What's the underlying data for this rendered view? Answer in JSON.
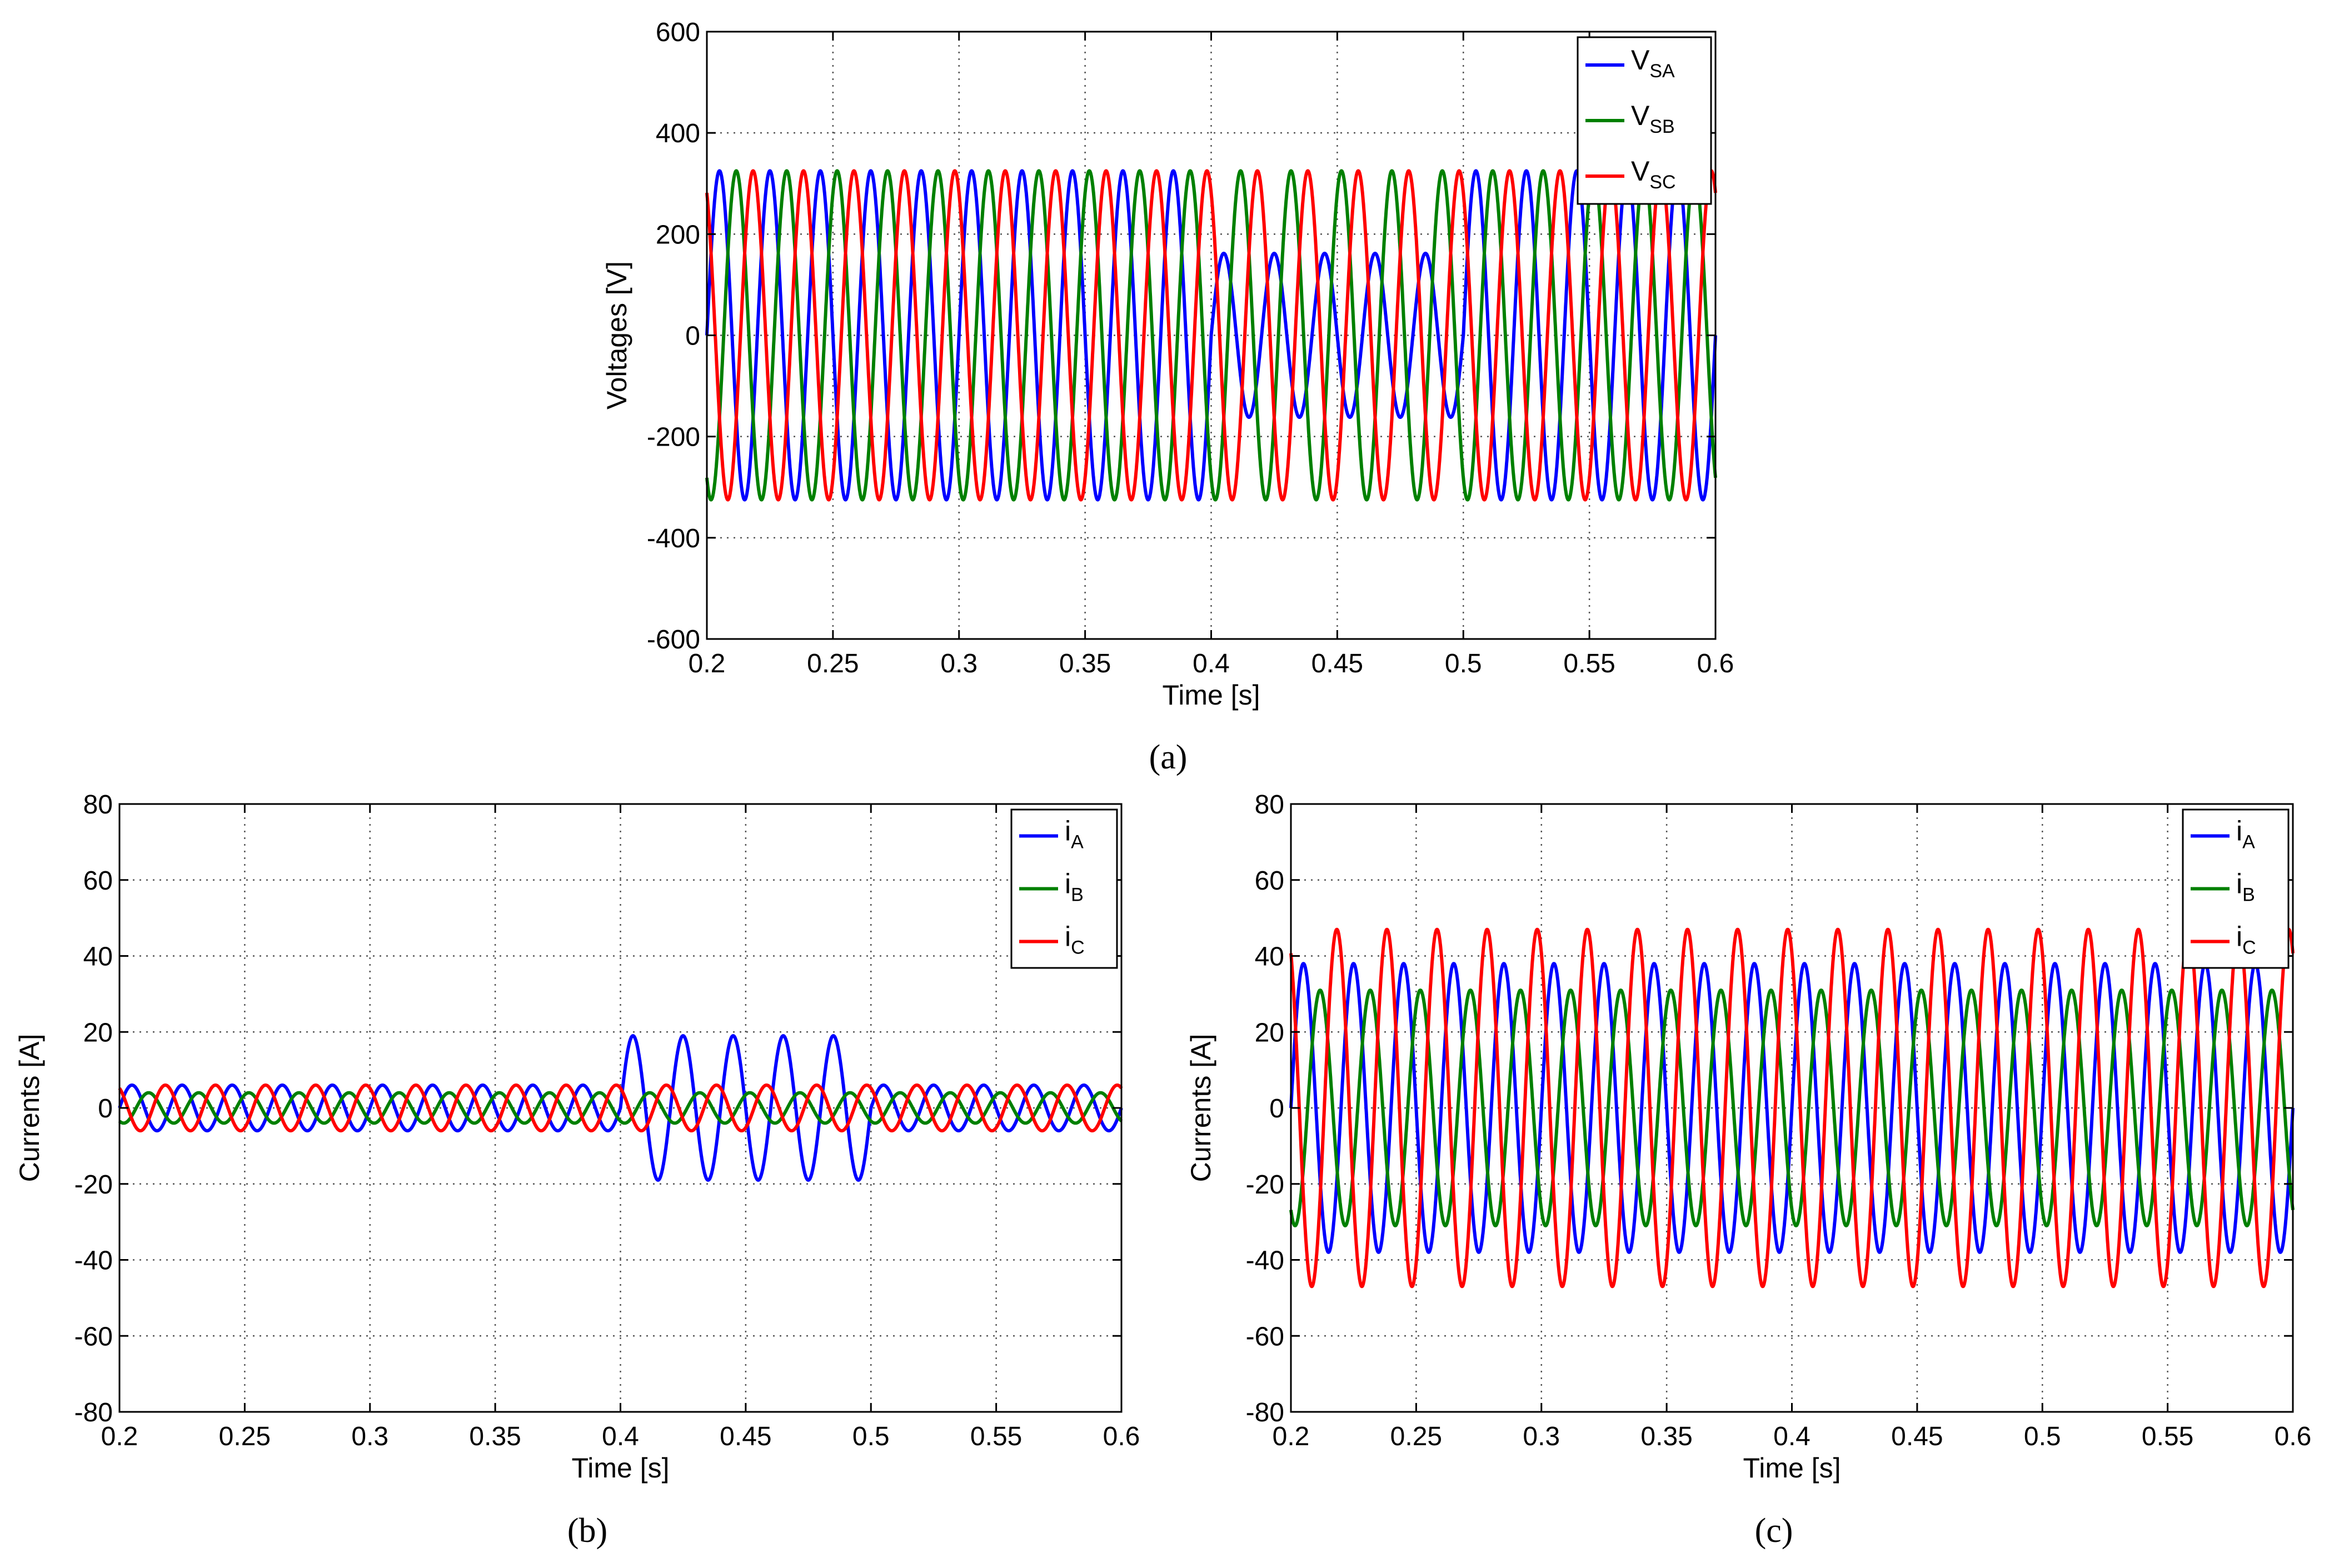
{
  "chart_data": [
    {
      "id": "a",
      "type": "line",
      "caption": "(a)",
      "xlabel": "Time [s]",
      "ylabel": "Voltages [V]",
      "xlim": [
        0.2,
        0.6
      ],
      "ylim": [
        -600,
        600
      ],
      "xticks": [
        0.2,
        0.25,
        0.3,
        0.35,
        0.4,
        0.45,
        0.5,
        0.55,
        0.6
      ],
      "xtick_labels": [
        "0.2",
        "0.25",
        "0.3",
        "0.35",
        "0.4",
        "0.45",
        "0.5",
        "0.55",
        "0.6"
      ],
      "yticks": [
        600,
        400,
        200,
        0,
        -200,
        -400,
        -600
      ],
      "ytick_labels": [
        "600",
        "400",
        "200",
        "0",
        "-200",
        "-400",
        "-600"
      ],
      "grid": "dotted",
      "legend_position": "top-right",
      "frequency_hz": 50,
      "series": [
        {
          "name": "V",
          "sub": "SA",
          "color": "#0000ff",
          "amplitude": 325,
          "phase_deg": 0,
          "sag": {
            "start": 0.4,
            "end": 0.5,
            "amplitude": 162
          }
        },
        {
          "name": "V",
          "sub": "SB",
          "color": "#008000",
          "amplitude": 325,
          "phase_deg": -120
        },
        {
          "name": "V",
          "sub": "SC",
          "color": "#ff0000",
          "amplitude": 325,
          "phase_deg": 120
        }
      ]
    },
    {
      "id": "b",
      "type": "line",
      "caption": "(b)",
      "xlabel": "Time [s]",
      "ylabel": "Currents [A]",
      "xlim": [
        0.2,
        0.6
      ],
      "ylim": [
        -80,
        80
      ],
      "xticks": [
        0.2,
        0.25,
        0.3,
        0.35,
        0.4,
        0.45,
        0.5,
        0.55,
        0.6
      ],
      "xtick_labels": [
        "0.2",
        "0.25",
        "0.3",
        "0.35",
        "0.4",
        "0.45",
        "0.5",
        "0.55",
        "0.6"
      ],
      "yticks": [
        80,
        60,
        40,
        20,
        0,
        -20,
        -40,
        -60,
        -80
      ],
      "ytick_labels": [
        "80",
        "60",
        "40",
        "20",
        "0",
        "-20",
        "-40",
        "-60",
        "-80"
      ],
      "grid": "dotted",
      "legend_position": "top-right",
      "frequency_hz": 50,
      "series": [
        {
          "name": "i",
          "sub": "A",
          "color": "#0000ff",
          "amplitude": 6,
          "phase_deg": 0,
          "sag": {
            "start": 0.4,
            "end": 0.5,
            "amplitude": 19
          }
        },
        {
          "name": "i",
          "sub": "B",
          "color": "#008000",
          "amplitude": 4,
          "phase_deg": -120
        },
        {
          "name": "i",
          "sub": "C",
          "color": "#ff0000",
          "amplitude": 6,
          "phase_deg": 120
        }
      ]
    },
    {
      "id": "c",
      "type": "line",
      "caption": "(c)",
      "xlabel": "Time [s]",
      "ylabel": "Currents [A]",
      "xlim": [
        0.2,
        0.6
      ],
      "ylim": [
        -80,
        80
      ],
      "xticks": [
        0.2,
        0.25,
        0.3,
        0.35,
        0.4,
        0.45,
        0.5,
        0.55,
        0.6
      ],
      "xtick_labels": [
        "0.2",
        "0.25",
        "0.3",
        "0.35",
        "0.4",
        "0.45",
        "0.5",
        "0.55",
        "0.6"
      ],
      "yticks": [
        80,
        60,
        40,
        20,
        0,
        -20,
        -40,
        -60,
        -80
      ],
      "ytick_labels": [
        "80",
        "60",
        "40",
        "20",
        "0",
        "-20",
        "-40",
        "-60",
        "-80"
      ],
      "grid": "dotted",
      "legend_position": "top-right",
      "frequency_hz": 50,
      "series": [
        {
          "name": "i",
          "sub": "A",
          "color": "#0000ff",
          "amplitude": 38,
          "phase_deg": 0
        },
        {
          "name": "i",
          "sub": "B",
          "color": "#008000",
          "amplitude": 31,
          "phase_deg": -120
        },
        {
          "name": "i",
          "sub": "C",
          "color": "#ff0000",
          "amplitude": 47,
          "phase_deg": 120
        }
      ]
    }
  ]
}
